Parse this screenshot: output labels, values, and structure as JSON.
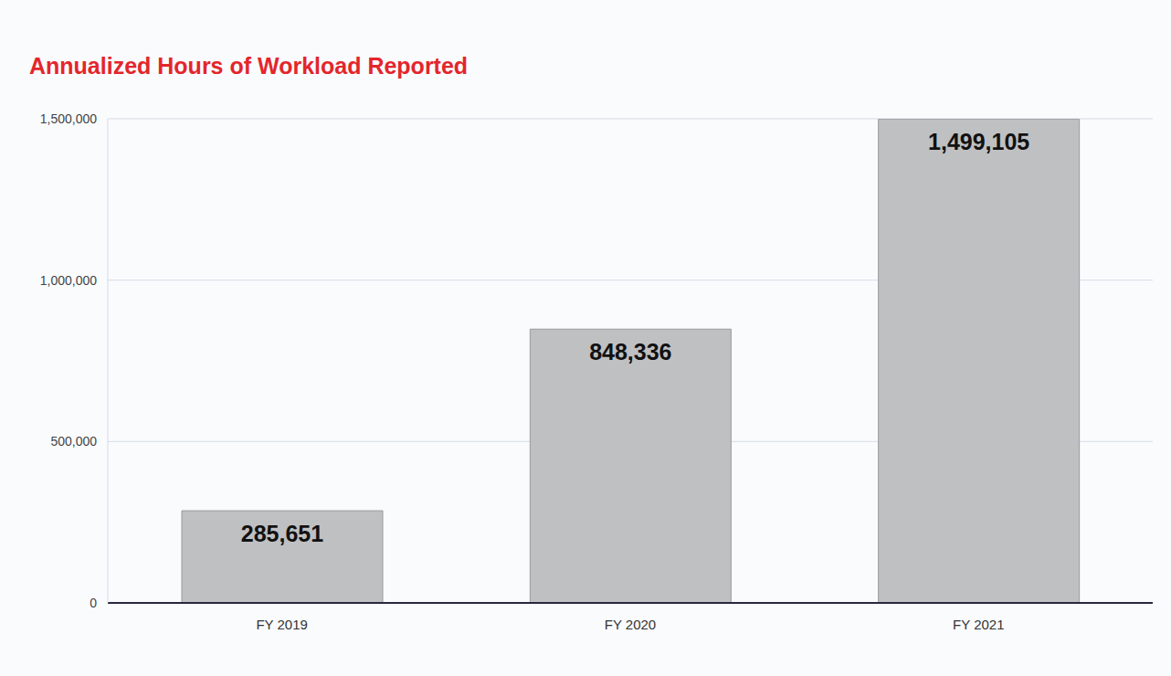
{
  "chart_data": {
    "type": "bar",
    "title": "Annualized Hours of Workload Reported",
    "categories": [
      "FY 2019",
      "FY 2020",
      "FY 2021"
    ],
    "values": [
      285651,
      848336,
      1499105
    ],
    "value_labels": [
      "285,651",
      "848,336",
      "1,499,105"
    ],
    "color": "#bfc0c2",
    "ylim": [
      0,
      1500000
    ],
    "yticks": [
      0,
      {
        "value": 500000,
        "label": "500,000"
      },
      {
        "value": 1000000,
        "label": "1,000,000"
      },
      {
        "value": 1500000,
        "label": "1,500,000"
      }
    ],
    "grid": true,
    "data_labels": true
  }
}
